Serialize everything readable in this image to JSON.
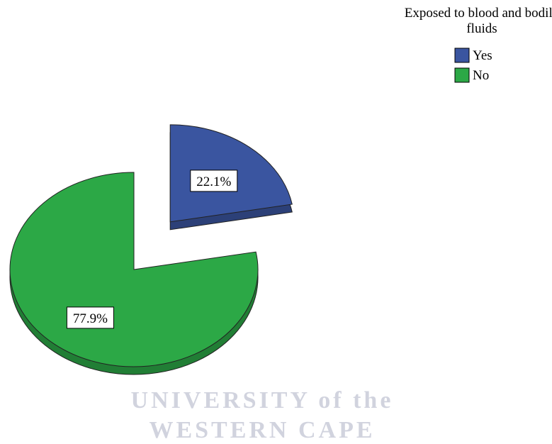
{
  "chart_data": {
    "type": "pie",
    "legend_title": "Exposed to blood and bodily fluids",
    "categories": [
      "Yes",
      "No"
    ],
    "values": [
      22.1,
      77.9
    ],
    "value_labels": [
      "22.1%",
      "77.9%"
    ],
    "colors": [
      "#3a55a0",
      "#2ca846"
    ],
    "exploded": [
      true,
      false
    ],
    "legend": "top-right"
  },
  "watermark": [
    "UNIVERSITY of the",
    "WESTERN CAPE"
  ]
}
